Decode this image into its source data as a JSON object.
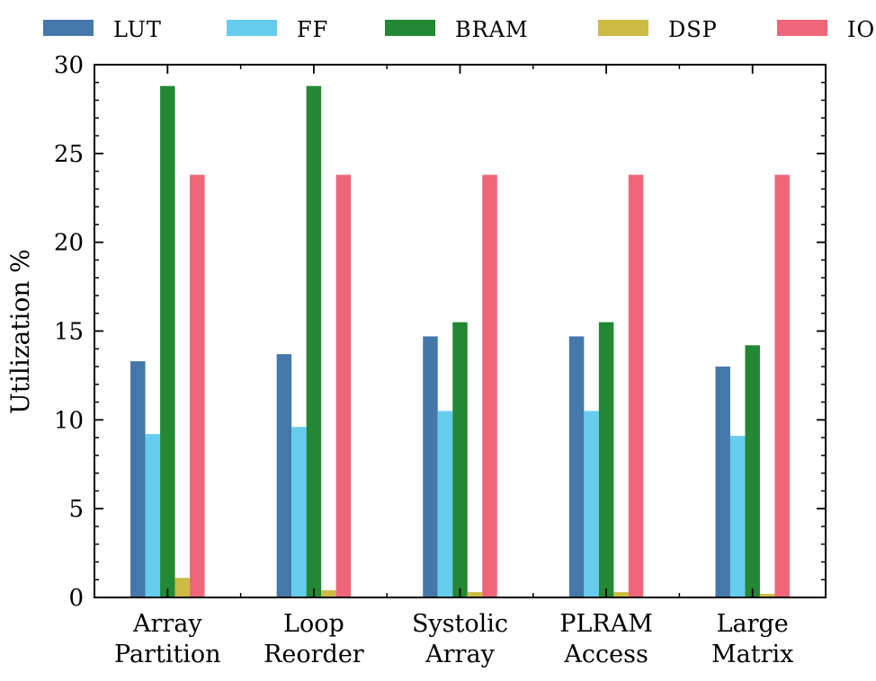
{
  "chart_data": {
    "type": "bar",
    "categories": [
      [
        "Array",
        "Partition"
      ],
      [
        "Loop",
        "Reorder"
      ],
      [
        "Systolic",
        "Array"
      ],
      [
        "PLRAM",
        "Access"
      ],
      [
        "Large",
        "Matrix"
      ]
    ],
    "series": [
      {
        "name": "LUT",
        "color": "#4477aa",
        "values": [
          13.3,
          13.7,
          14.7,
          14.7,
          13.0
        ]
      },
      {
        "name": "FF",
        "color": "#66ccee",
        "values": [
          9.2,
          9.6,
          10.5,
          10.5,
          9.1
        ]
      },
      {
        "name": "BRAM",
        "color": "#228833",
        "values": [
          28.8,
          28.8,
          15.5,
          15.5,
          14.2
        ]
      },
      {
        "name": "DSP",
        "color": "#ccbb44",
        "values": [
          1.1,
          0.4,
          0.3,
          0.3,
          0.2
        ]
      },
      {
        "name": "IO",
        "color": "#ee6677",
        "values": [
          23.8,
          23.8,
          23.8,
          23.8,
          23.8
        ]
      }
    ],
    "ylabel": "Utilization %",
    "xlabel": "",
    "title": "",
    "ylim": [
      0,
      30
    ],
    "yticks": [
      0,
      5,
      10,
      15,
      20,
      25,
      30
    ],
    "yminor_step": 1,
    "grid": false,
    "legend_position": "top"
  }
}
